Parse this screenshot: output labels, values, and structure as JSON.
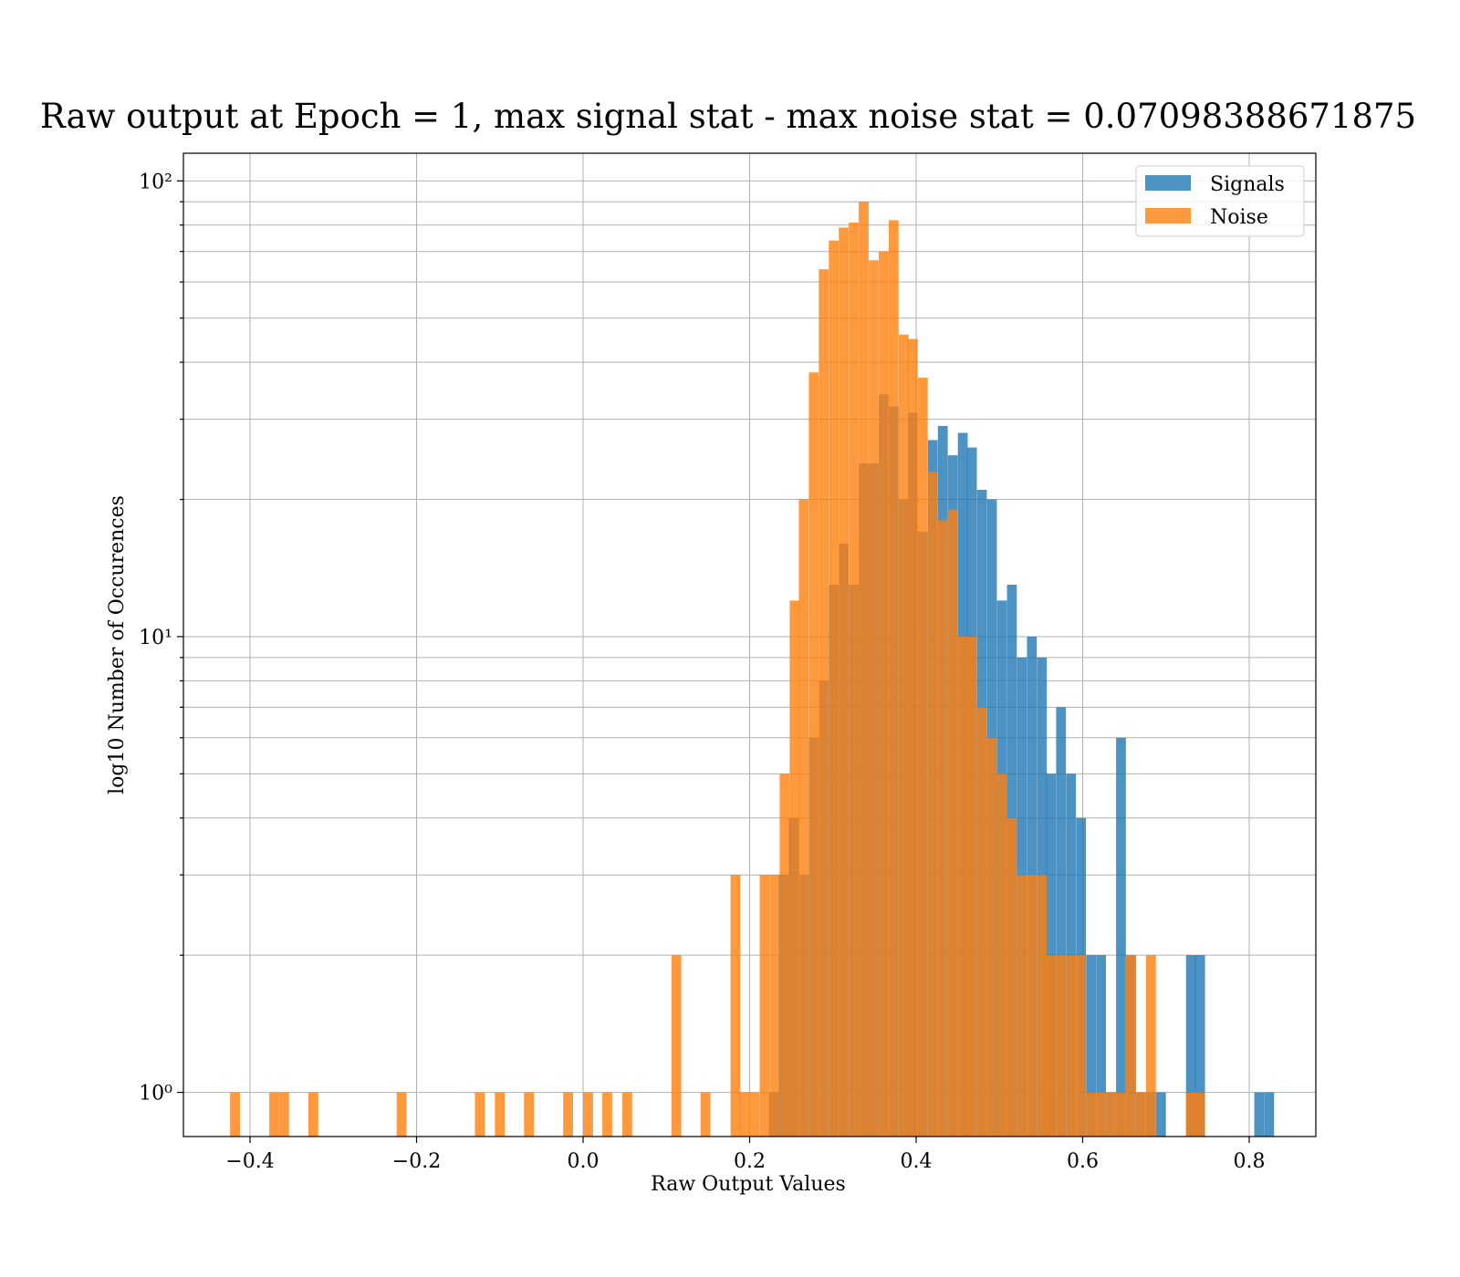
{
  "chart_data": {
    "type": "bar",
    "title": "Raw output at Epoch = 1, max signal stat - max noise stat = 0.07098388671875",
    "xlabel": "Raw Output Values",
    "ylabel": "log10 Number of Occurences",
    "xlim": [
      -0.48,
      0.88
    ],
    "ylim": [
      0.8,
      115
    ],
    "yscale": "log",
    "grid": true,
    "legend_position": "top-right",
    "bin_width": 0.0118,
    "x_ticks": [
      -0.4,
      -0.2,
      0.0,
      0.2,
      0.4,
      0.6,
      0.8
    ],
    "x_tick_labels": [
      "−0.4",
      "−0.2",
      "0.0",
      "0.2",
      "0.4",
      "0.6",
      "0.8"
    ],
    "y_ticks": [
      1,
      10,
      100
    ],
    "y_tick_labels": [
      "10⁰",
      "10¹",
      "10²"
    ],
    "series": [
      {
        "name": "Signals",
        "color": "#1f77b4",
        "opacity": 0.8,
        "bins": [
          [
            0.229,
            1
          ],
          [
            0.241,
            3
          ],
          [
            0.253,
            4
          ],
          [
            0.265,
            3
          ],
          [
            0.277,
            6
          ],
          [
            0.289,
            8
          ],
          [
            0.301,
            13
          ],
          [
            0.313,
            16
          ],
          [
            0.325,
            13
          ],
          [
            0.337,
            24
          ],
          [
            0.349,
            24
          ],
          [
            0.361,
            34
          ],
          [
            0.373,
            32
          ],
          [
            0.385,
            20
          ],
          [
            0.396,
            31
          ],
          [
            0.408,
            17
          ],
          [
            0.42,
            27
          ],
          [
            0.432,
            29
          ],
          [
            0.444,
            25
          ],
          [
            0.456,
            28
          ],
          [
            0.467,
            26
          ],
          [
            0.479,
            21
          ],
          [
            0.491,
            20
          ],
          [
            0.503,
            12
          ],
          [
            0.515,
            13
          ],
          [
            0.527,
            9
          ],
          [
            0.539,
            10
          ],
          [
            0.551,
            9
          ],
          [
            0.562,
            5
          ],
          [
            0.574,
            7
          ],
          [
            0.586,
            5
          ],
          [
            0.598,
            4
          ],
          [
            0.61,
            2
          ],
          [
            0.622,
            2
          ],
          [
            0.634,
            1
          ],
          [
            0.646,
            6
          ],
          [
            0.658,
            2
          ],
          [
            0.67,
            1
          ],
          [
            0.682,
            1
          ],
          [
            0.694,
            1
          ],
          [
            0.73,
            2
          ],
          [
            0.741,
            2
          ],
          [
            0.812,
            1
          ],
          [
            0.824,
            1
          ]
        ]
      },
      {
        "name": "Noise",
        "color": "#ff7f0e",
        "opacity": 0.8,
        "bins": [
          [
            -0.418,
            1
          ],
          [
            -0.371,
            1
          ],
          [
            -0.359,
            1
          ],
          [
            -0.324,
            1
          ],
          [
            -0.218,
            1
          ],
          [
            -0.124,
            1
          ],
          [
            -0.1,
            1
          ],
          [
            -0.065,
            1
          ],
          [
            -0.018,
            1
          ],
          [
            0.006,
            1
          ],
          [
            0.029,
            1
          ],
          [
            0.053,
            1
          ],
          [
            0.112,
            2
          ],
          [
            0.147,
            1
          ],
          [
            0.183,
            3
          ],
          [
            0.194,
            1
          ],
          [
            0.206,
            1
          ],
          [
            0.218,
            3
          ],
          [
            0.23,
            3
          ],
          [
            0.242,
            5
          ],
          [
            0.254,
            12
          ],
          [
            0.265,
            20
          ],
          [
            0.277,
            38
          ],
          [
            0.289,
            64
          ],
          [
            0.301,
            74
          ],
          [
            0.313,
            79
          ],
          [
            0.325,
            81
          ],
          [
            0.337,
            90
          ],
          [
            0.349,
            67
          ],
          [
            0.361,
            70
          ],
          [
            0.373,
            82
          ],
          [
            0.385,
            46
          ],
          [
            0.396,
            45
          ],
          [
            0.408,
            37
          ],
          [
            0.42,
            23
          ],
          [
            0.432,
            18
          ],
          [
            0.444,
            19
          ],
          [
            0.456,
            10
          ],
          [
            0.467,
            10
          ],
          [
            0.479,
            7
          ],
          [
            0.491,
            6
          ],
          [
            0.503,
            5
          ],
          [
            0.515,
            4
          ],
          [
            0.527,
            3
          ],
          [
            0.539,
            3
          ],
          [
            0.551,
            3
          ],
          [
            0.562,
            2
          ],
          [
            0.574,
            2
          ],
          [
            0.586,
            2
          ],
          [
            0.598,
            2
          ],
          [
            0.61,
            1
          ],
          [
            0.622,
            1
          ],
          [
            0.634,
            1
          ],
          [
            0.646,
            1
          ],
          [
            0.658,
            2
          ],
          [
            0.67,
            1
          ],
          [
            0.682,
            2
          ],
          [
            0.73,
            1
          ],
          [
            0.741,
            1
          ]
        ]
      }
    ]
  }
}
